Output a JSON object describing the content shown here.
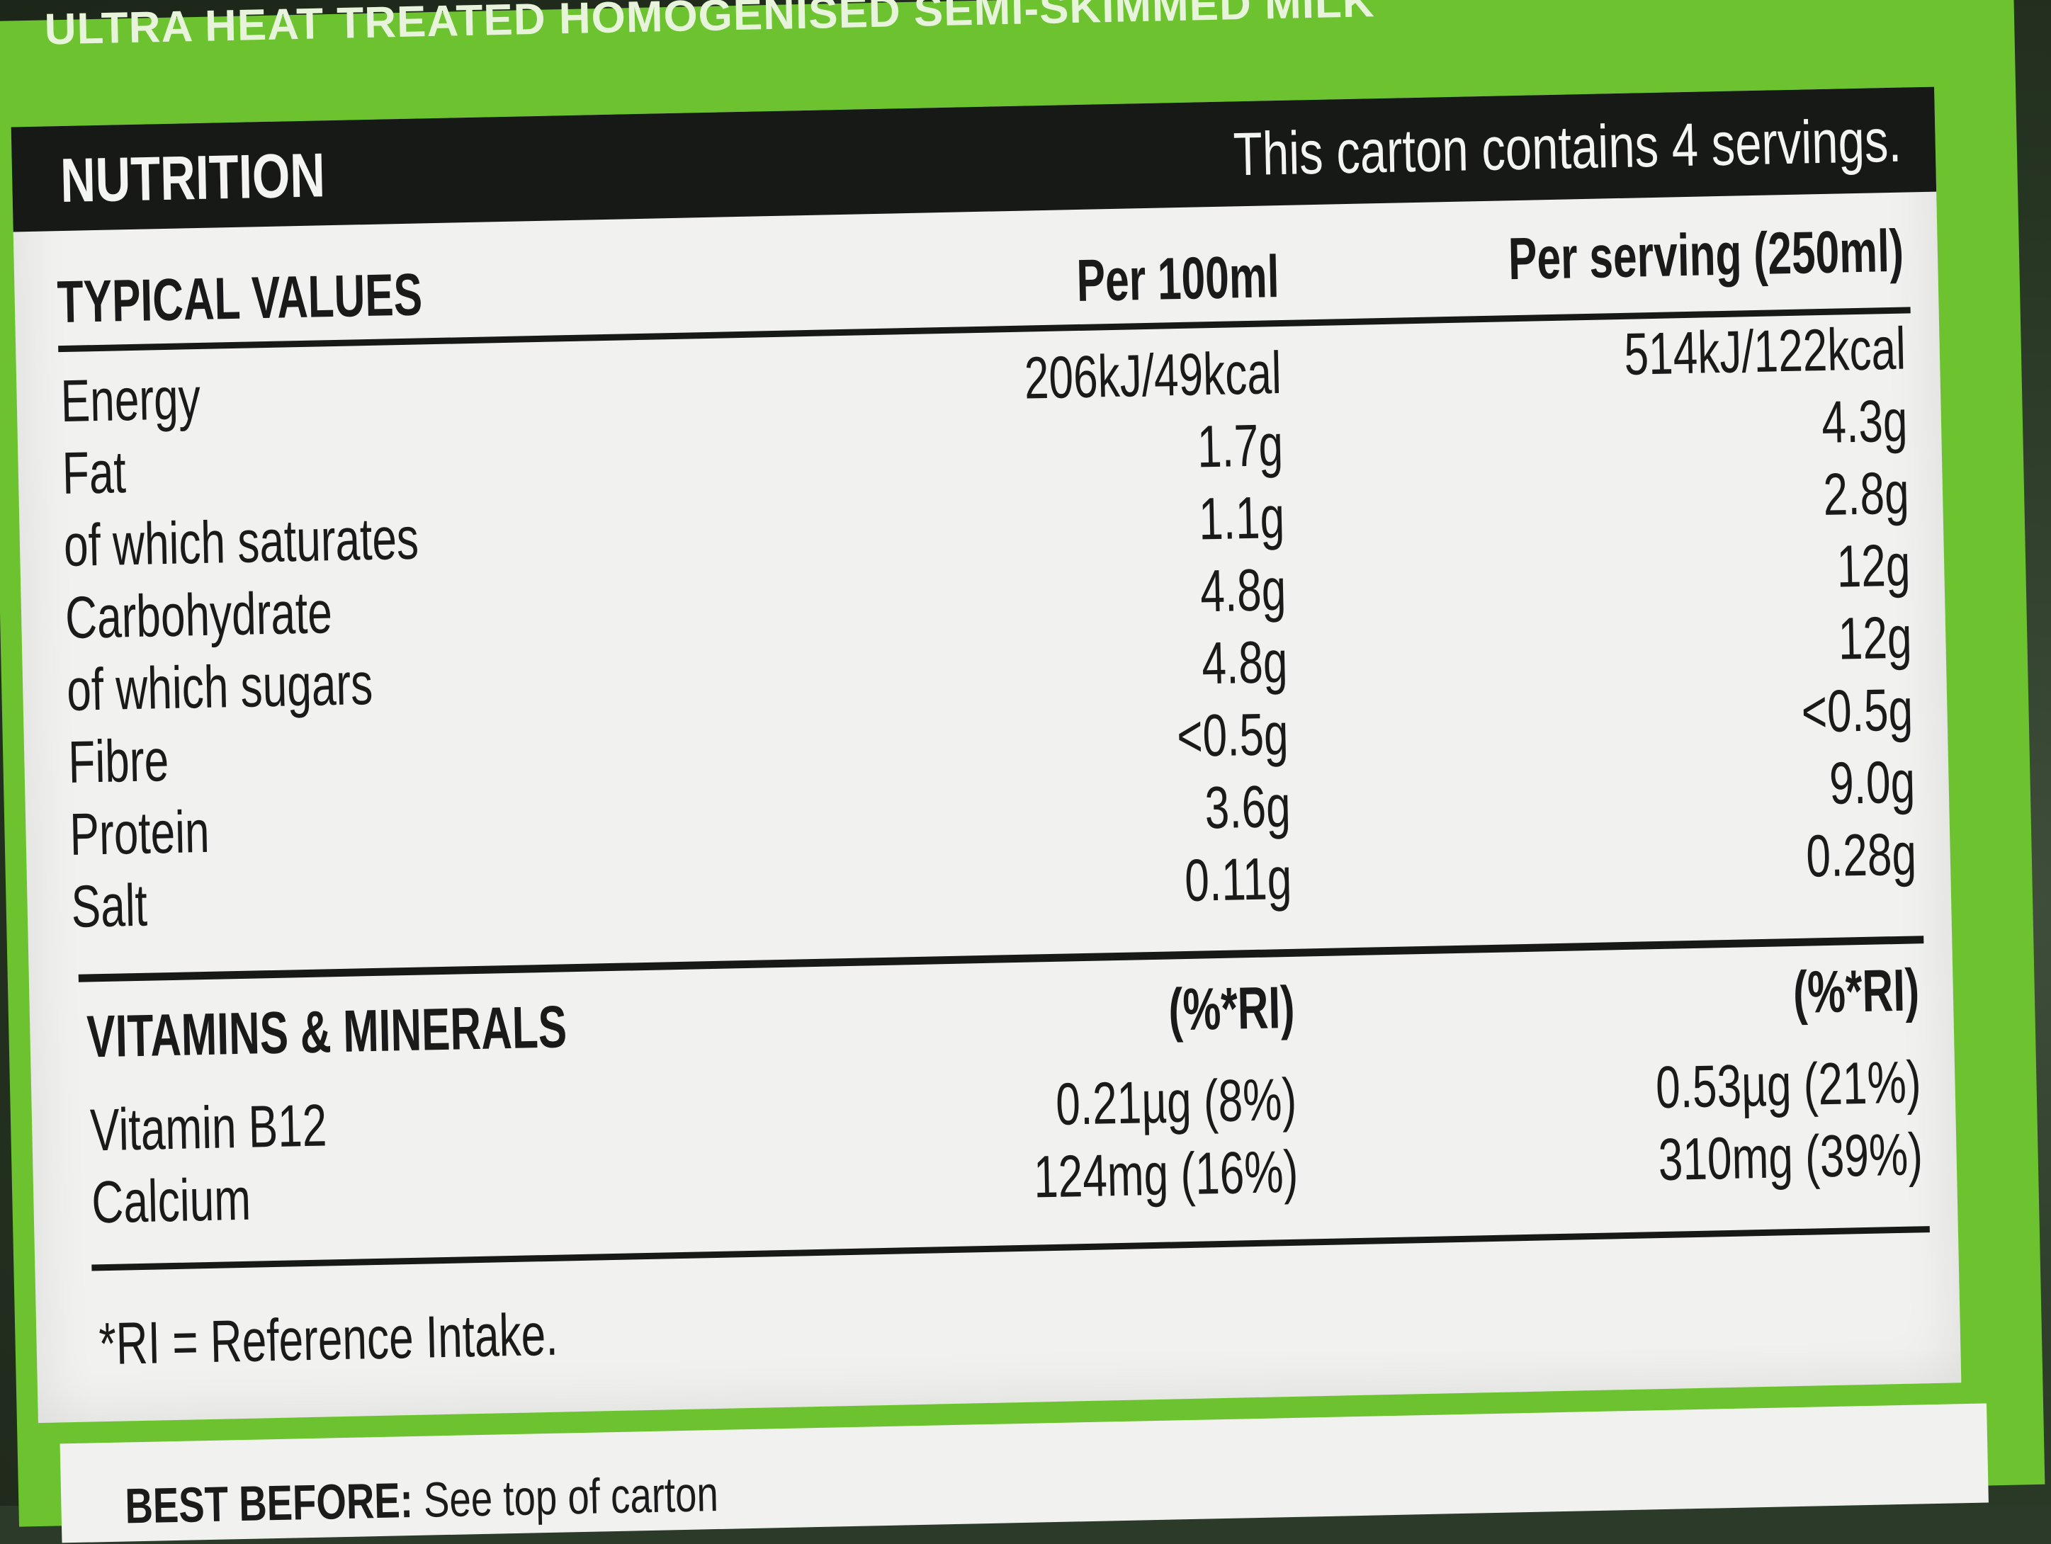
{
  "top_strip": "ULTRA HEAT TREATED HOMOGENISED SEMI-SKIMMED MILK",
  "header": {
    "title": "NUTRITION",
    "servings_note": "This carton contains 4 servings."
  },
  "table": {
    "col_label": "TYPICAL VALUES",
    "col_per100": "Per 100ml",
    "col_serving": "Per serving (250ml)",
    "rows": [
      {
        "label": "Energy",
        "per100": "206kJ/49kcal",
        "serving": "514kJ/122kcal"
      },
      {
        "label": "Fat",
        "per100": "1.7g",
        "serving": "4.3g"
      },
      {
        "label": "of which saturates",
        "per100": "1.1g",
        "serving": "2.8g"
      },
      {
        "label": "Carbohydrate",
        "per100": "4.8g",
        "serving": "12g"
      },
      {
        "label": "of which sugars",
        "per100": "4.8g",
        "serving": "12g"
      },
      {
        "label": "Fibre",
        "per100": "<0.5g",
        "serving": "<0.5g"
      },
      {
        "label": "Protein",
        "per100": "3.6g",
        "serving": "9.0g"
      },
      {
        "label": "Salt",
        "per100": "0.11g",
        "serving": "0.28g"
      }
    ]
  },
  "vitamins": {
    "heading": "VITAMINS & MINERALS",
    "ri_per100": "(%*RI)",
    "ri_serving": "(%*RI)",
    "rows": [
      {
        "label": "Vitamin B12",
        "per100": "0.21µg (8%)",
        "serving": "0.53µg (21%)"
      },
      {
        "label": "Calcium",
        "per100": "124mg (16%)",
        "serving": "310mg (39%)"
      }
    ]
  },
  "footnote": "*RI = Reference Intake.",
  "best_before": {
    "label": "BEST BEFORE:",
    "text": "See top of carton"
  },
  "colors": {
    "carton_green": "#6cc32f",
    "panel_white": "#f1f2ef",
    "ink": "#161916"
  }
}
